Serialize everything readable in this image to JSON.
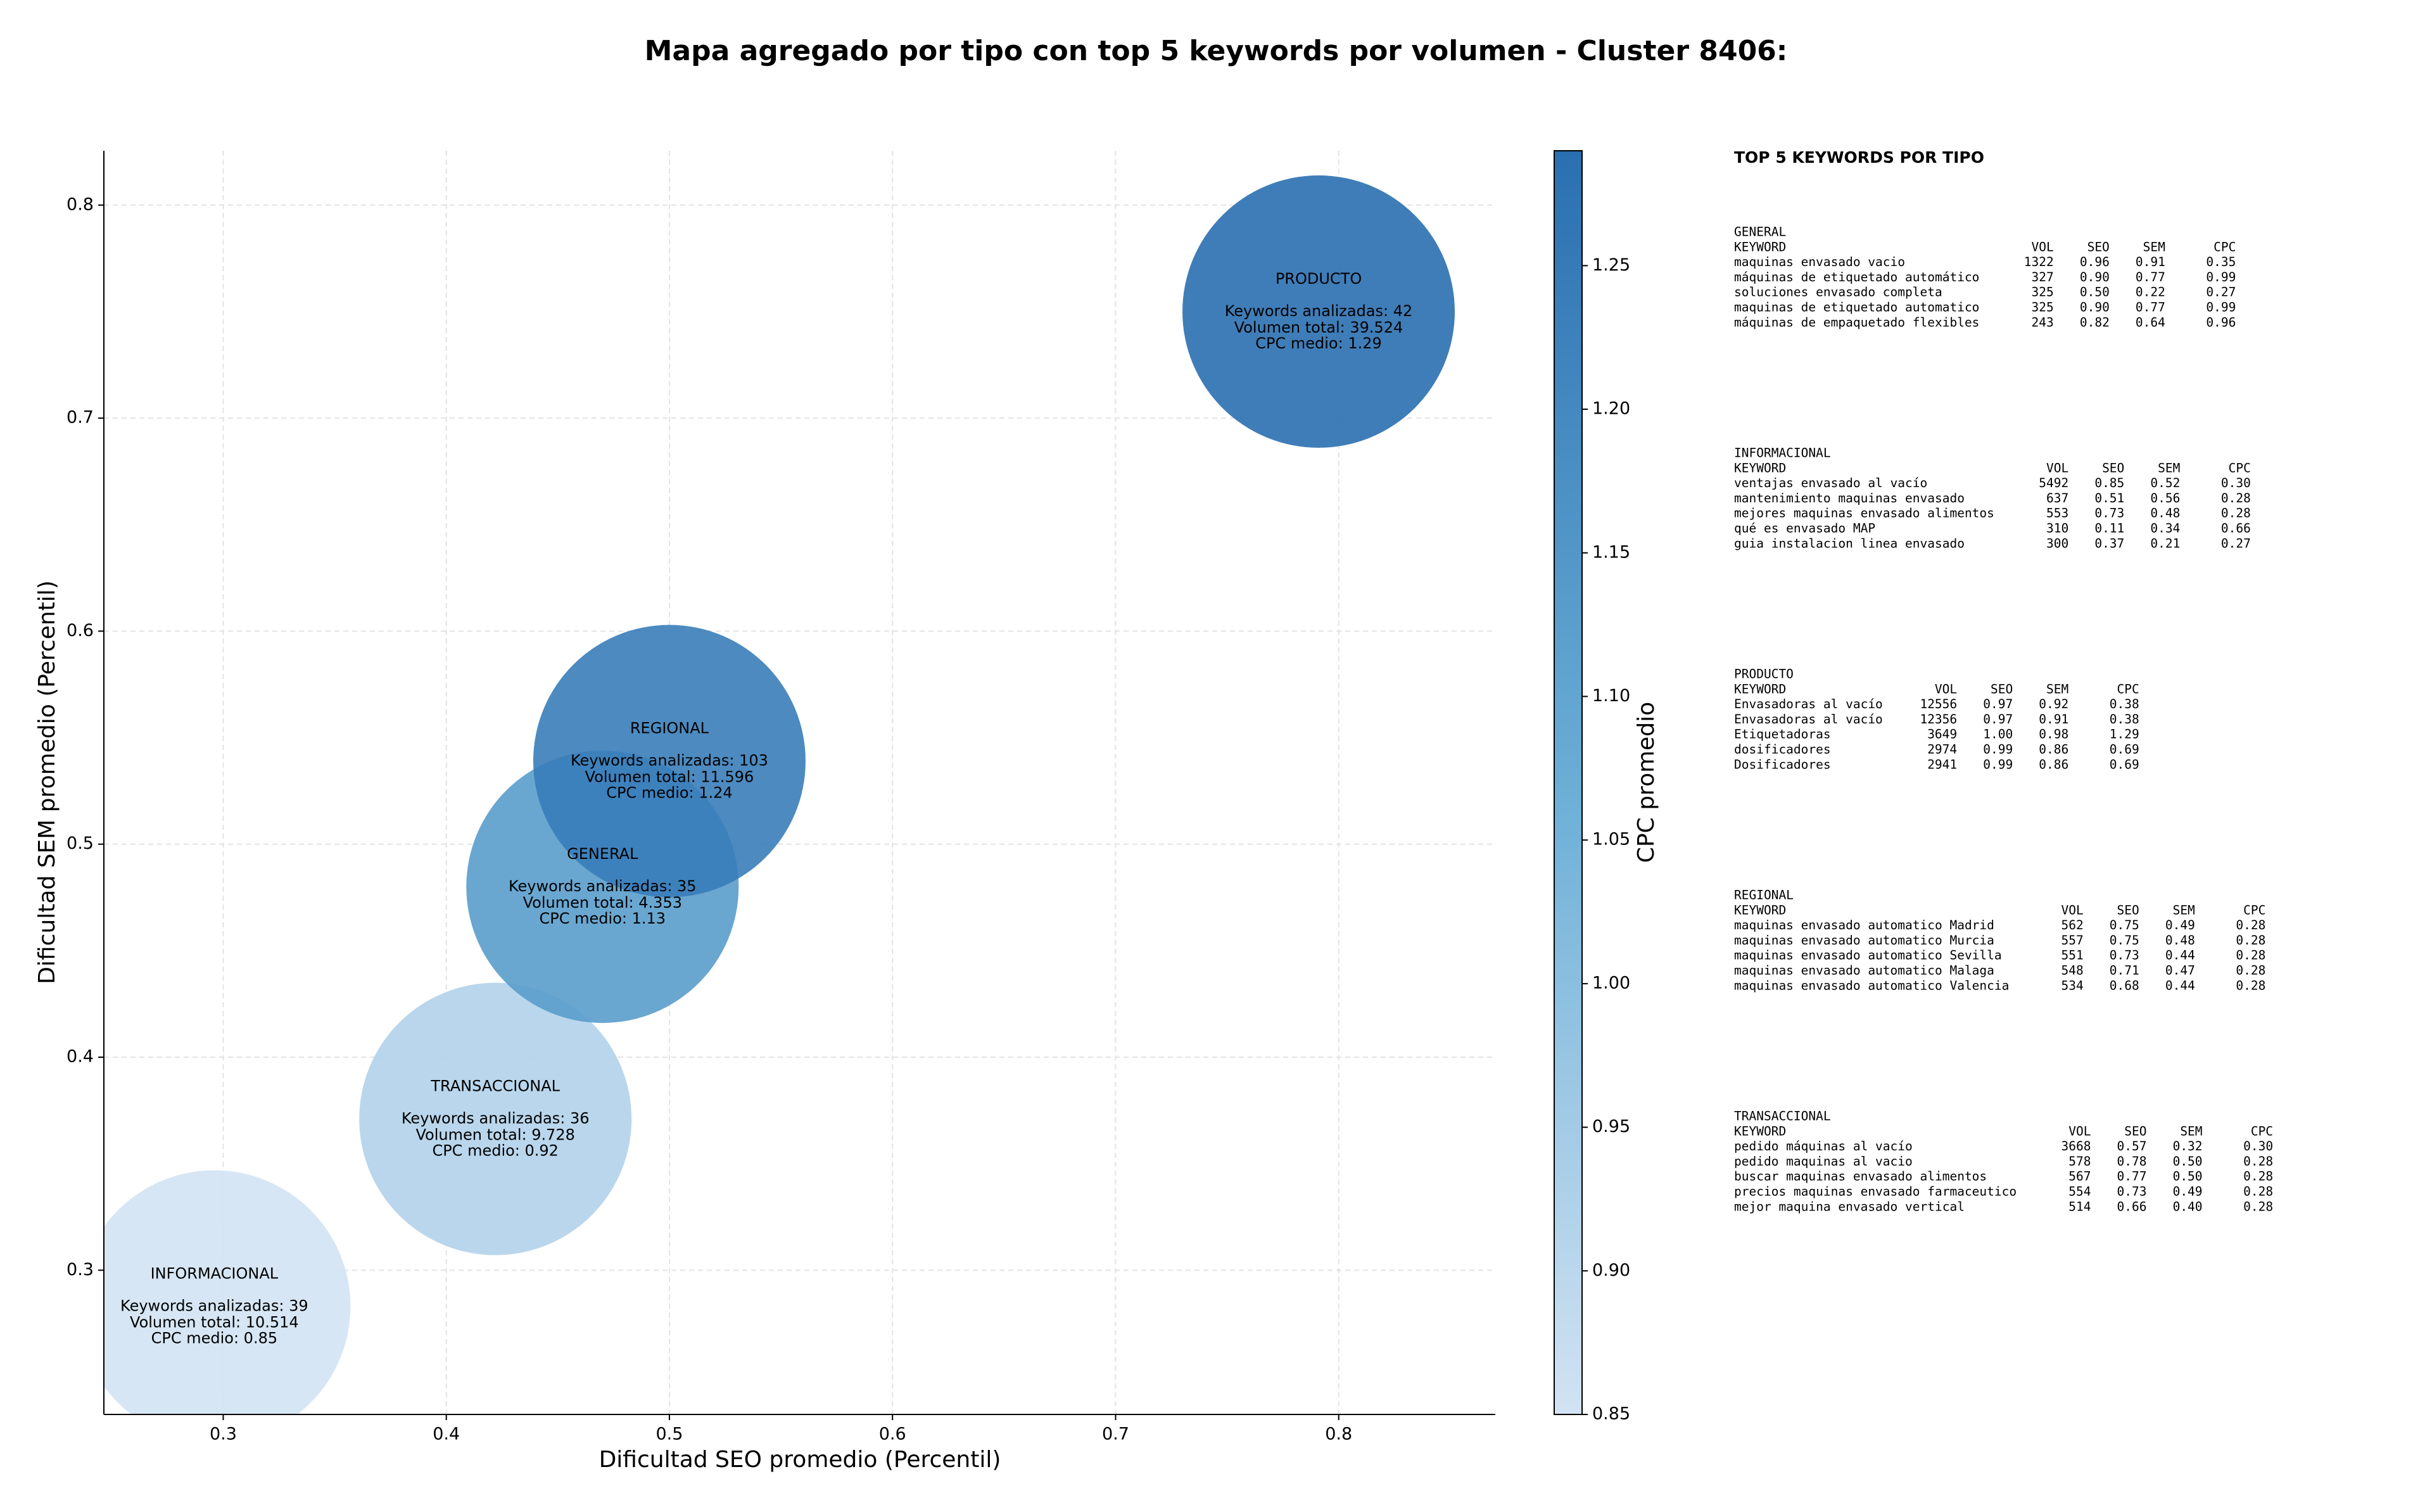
{
  "chart_data": {
    "type": "bubble",
    "title": "Mapa agregado por tipo con top 5 keywords por volumen - Cluster 8406:",
    "xlabel": "Dificultad SEO promedio (Percentil)",
    "ylabel": "Dificultad SEM promedio (Percentil)",
    "xlim": [
      0.2465,
      0.8702
    ],
    "ylim": [
      0.2323,
      0.8255
    ],
    "xticks": [
      0.3,
      0.4,
      0.5,
      0.6,
      0.7,
      0.8
    ],
    "yticks": [
      0.3,
      0.4,
      0.5,
      0.6,
      0.7,
      0.8
    ],
    "grid": true,
    "points": [
      {
        "label": [
          "INFORMACIONAL",
          "Keywords analizadas: 39",
          "Volumen total: 10.514",
          "CPC medio: 0.85"
        ],
        "x": 0.296,
        "y": 0.283,
        "cpc": 0.85
      },
      {
        "label": [
          "TRANSACCIONAL",
          "Keywords analizadas: 36",
          "Volumen total: 9.728",
          "CPC medio: 0.92"
        ],
        "x": 0.422,
        "y": 0.371,
        "cpc": 0.92
      },
      {
        "label": [
          "GENERAL",
          "Keywords analizadas: 35",
          "Volumen total: 4.353",
          "CPC medio: 1.13"
        ],
        "x": 0.47,
        "y": 0.48,
        "cpc": 1.13
      },
      {
        "label": [
          "REGIONAL",
          "Keywords analizadas: 103",
          "Volumen total: 11.596",
          "CPC medio: 1.24"
        ],
        "x": 0.5,
        "y": 0.539,
        "cpc": 1.24
      },
      {
        "label": [
          "PRODUCTO",
          "Keywords analizadas: 42",
          "Volumen total: 39.524",
          "CPC medio: 1.29"
        ],
        "x": 0.791,
        "y": 0.75,
        "cpc": 1.29
      }
    ],
    "colorbar": {
      "label": "CPC promedio",
      "lim": [
        0.85,
        1.29
      ],
      "ticks": [
        0.85,
        {
          "value": 0.9,
          "label": "0.90"
        },
        0.95,
        {
          "value": 1.0,
          "label": "1.00"
        },
        1.05,
        {
          "value": 1.1,
          "label": "1.10"
        },
        1.15,
        {
          "value": 1.2,
          "label": "1.20"
        },
        1.25
      ],
      "colormap": [
        "#d2e3f3",
        "#6aaed6",
        "#2a6fb0"
      ]
    }
  },
  "side_panel": {
    "title": "TOP 5 KEYWORDS POR TIPO",
    "header": [
      "KEYWORD",
      "VOL",
      "SEO",
      "SEM",
      "CPC"
    ],
    "sections": [
      {
        "name": "GENERAL",
        "rows": [
          [
            "maquinas envasado vacio",
            "1322",
            "0.96",
            "0.91",
            "0.35"
          ],
          [
            "máquinas de etiquetado automático",
            "327",
            "0.90",
            "0.77",
            "0.99"
          ],
          [
            "soluciones envasado completa",
            "325",
            "0.50",
            "0.22",
            "0.27"
          ],
          [
            "maquinas de etiquetado automatico",
            "325",
            "0.90",
            "0.77",
            "0.99"
          ],
          [
            "máquinas de empaquetado flexibles",
            "243",
            "0.82",
            "0.64",
            "0.96"
          ]
        ]
      },
      {
        "name": "INFORMACIONAL",
        "rows": [
          [
            "ventajas envasado al vacío",
            "5492",
            "0.85",
            "0.52",
            "0.30"
          ],
          [
            "mantenimiento maquinas envasado",
            "637",
            "0.51",
            "0.56",
            "0.28"
          ],
          [
            "mejores maquinas envasado alimentos",
            "553",
            "0.73",
            "0.48",
            "0.28"
          ],
          [
            "qué es envasado MAP",
            "310",
            "0.11",
            "0.34",
            "0.66"
          ],
          [
            "guia instalacion linea envasado",
            "300",
            "0.37",
            "0.21",
            "0.27"
          ]
        ]
      },
      {
        "name": "PRODUCTO",
        "rows": [
          [
            "Envasadoras al vacío",
            "12556",
            "0.97",
            "0.92",
            "0.38"
          ],
          [
            "Envasadoras al vacío",
            "12356",
            "0.97",
            "0.91",
            "0.38"
          ],
          [
            "Etiquetadoras",
            "3649",
            "1.00",
            "0.98",
            "1.29"
          ],
          [
            "dosificadores",
            "2974",
            "0.99",
            "0.86",
            "0.69"
          ],
          [
            "Dosificadores",
            "2941",
            "0.99",
            "0.86",
            "0.69"
          ]
        ]
      },
      {
        "name": "REGIONAL",
        "rows": [
          [
            "maquinas envasado automatico Madrid",
            "562",
            "0.75",
            "0.49",
            "0.28"
          ],
          [
            "maquinas envasado automatico Murcia",
            "557",
            "0.75",
            "0.48",
            "0.28"
          ],
          [
            "maquinas envasado automatico Sevilla",
            "551",
            "0.73",
            "0.44",
            "0.28"
          ],
          [
            "maquinas envasado automatico Malaga",
            "548",
            "0.71",
            "0.47",
            "0.28"
          ],
          [
            "maquinas envasado automatico Valencia",
            "534",
            "0.68",
            "0.44",
            "0.28"
          ]
        ]
      },
      {
        "name": "TRANSACCIONAL",
        "rows": [
          [
            "pedido máquinas al vacío",
            "3668",
            "0.57",
            "0.32",
            "0.30"
          ],
          [
            "pedido maquinas al vacio",
            "578",
            "0.78",
            "0.50",
            "0.28"
          ],
          [
            "buscar maquinas envasado alimentos",
            "567",
            "0.77",
            "0.50",
            "0.28"
          ],
          [
            "precios maquinas envasado farmaceutico",
            "554",
            "0.73",
            "0.49",
            "0.28"
          ],
          [
            "mejor maquina envasado vertical",
            "514",
            "0.66",
            "0.40",
            "0.28"
          ]
        ]
      }
    ]
  }
}
